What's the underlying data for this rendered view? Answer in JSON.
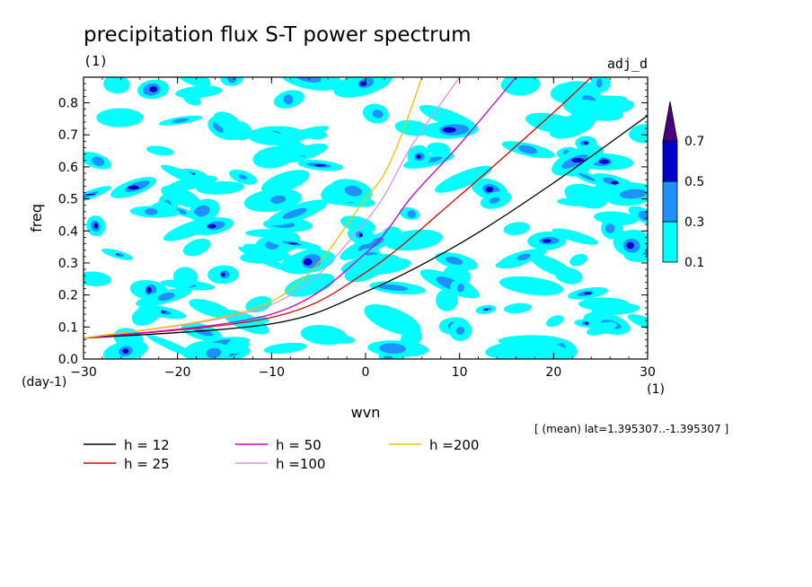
{
  "chart_data": {
    "type": "heatmap",
    "title": "precipitation flux S-T power spectrum",
    "units": "(1)",
    "corner_label": "adj_d",
    "xlabel": "wvn",
    "xunits": "(1)",
    "ylabel": "freq",
    "yunits": "(day-1)",
    "xlim": [
      -30,
      30
    ],
    "ylim": [
      0,
      0.88
    ],
    "xticks": [
      -30,
      -20,
      -10,
      0,
      10,
      20,
      30
    ],
    "xtick_labels": [
      "−30",
      "−20",
      "−10",
      "0",
      "10",
      "20",
      "30"
    ],
    "yticks": [
      0,
      0.1,
      0.2,
      0.3,
      0.4,
      0.5,
      0.6,
      0.7,
      0.8
    ],
    "ytick_labels": [
      "0.0",
      "0.1",
      "0.2",
      "0.3",
      "0.4",
      "0.5",
      "0.6",
      "0.7",
      "0.8"
    ],
    "colorbar": {
      "levels": [
        0.1,
        0.3,
        0.5,
        0.7
      ],
      "labels": [
        "0.1",
        "0.3",
        "0.5",
        "0.7"
      ],
      "colors": [
        "#00ffff",
        "#1e90ff",
        "#0000cd",
        "#4b0082"
      ]
    },
    "note": "[ (mean) lat=1.395307..-1.395307 ]",
    "series": [
      {
        "name": "h = 12",
        "color": "#000000",
        "equivalent_depth": 12
      },
      {
        "name": "h = 25",
        "color": "#e00000",
        "equivalent_depth": 25
      },
      {
        "name": "h = 50",
        "color": "#d000c0",
        "equivalent_depth": 50
      },
      {
        "name": "h =100",
        "color": "#e090e0",
        "equivalent_depth": 100
      },
      {
        "name": "h =200",
        "color": "#f0c000",
        "equivalent_depth": 200
      }
    ],
    "curve_y_at_xmin": 0.06,
    "curve_points": {
      "h = 12": [
        [
          -30,
          0.065
        ],
        [
          -10,
          0.11
        ],
        [
          0,
          0.21
        ],
        [
          10,
          0.36
        ],
        [
          20,
          0.55
        ],
        [
          30,
          0.76
        ]
      ],
      "h = 25": [
        [
          -30,
          0.065
        ],
        [
          -10,
          0.13
        ],
        [
          0,
          0.27
        ],
        [
          10,
          0.51
        ],
        [
          20,
          0.77
        ],
        [
          24,
          0.88
        ]
      ],
      "h = 50": [
        [
          -30,
          0.065
        ],
        [
          -10,
          0.14
        ],
        [
          0,
          0.33
        ],
        [
          5,
          0.51
        ],
        [
          10,
          0.67
        ],
        [
          16,
          0.88
        ]
      ],
      "h =100": [
        [
          -30,
          0.065
        ],
        [
          -10,
          0.17
        ],
        [
          0,
          0.43
        ],
        [
          5,
          0.67
        ],
        [
          10,
          0.88
        ]
      ],
      "h =200": [
        [
          -30,
          0.065
        ],
        [
          -10,
          0.18
        ],
        [
          0,
          0.5
        ],
        [
          3,
          0.64
        ],
        [
          6,
          0.88
        ]
      ]
    }
  }
}
